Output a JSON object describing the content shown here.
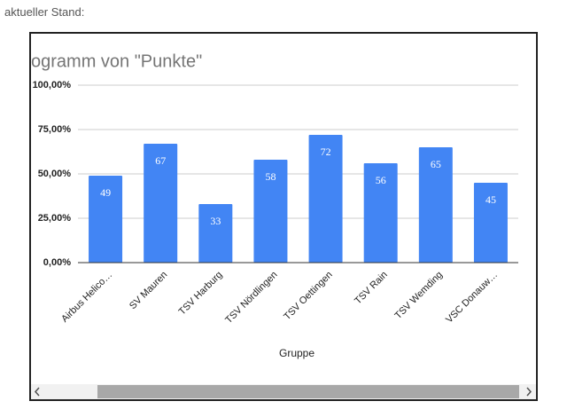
{
  "page": {
    "heading": "aktueller Stand:"
  },
  "chart_data": {
    "type": "bar",
    "title": "ogramm von \"Punkte\"",
    "x_label": "Gruppe",
    "categories": [
      "Airbus Helico…",
      "SV Mauren",
      "TSV Harburg",
      "TSV Nördlingen",
      "TSV Oettingen",
      "TSV Rain",
      "TSV Wemding",
      "VSC Donauw…"
    ],
    "values": [
      49,
      67,
      33,
      58,
      72,
      56,
      65,
      45
    ],
    "color": "#4285f4",
    "ylim": [
      0,
      100
    ],
    "yticks": [
      {
        "value": 0,
        "label": "0,00%"
      },
      {
        "value": 25,
        "label": "25,00%"
      },
      {
        "value": 50,
        "label": "50,00%"
      },
      {
        "value": 75,
        "label": "75,00%"
      },
      {
        "value": 100,
        "label": "100,00%"
      }
    ],
    "grid": true
  }
}
